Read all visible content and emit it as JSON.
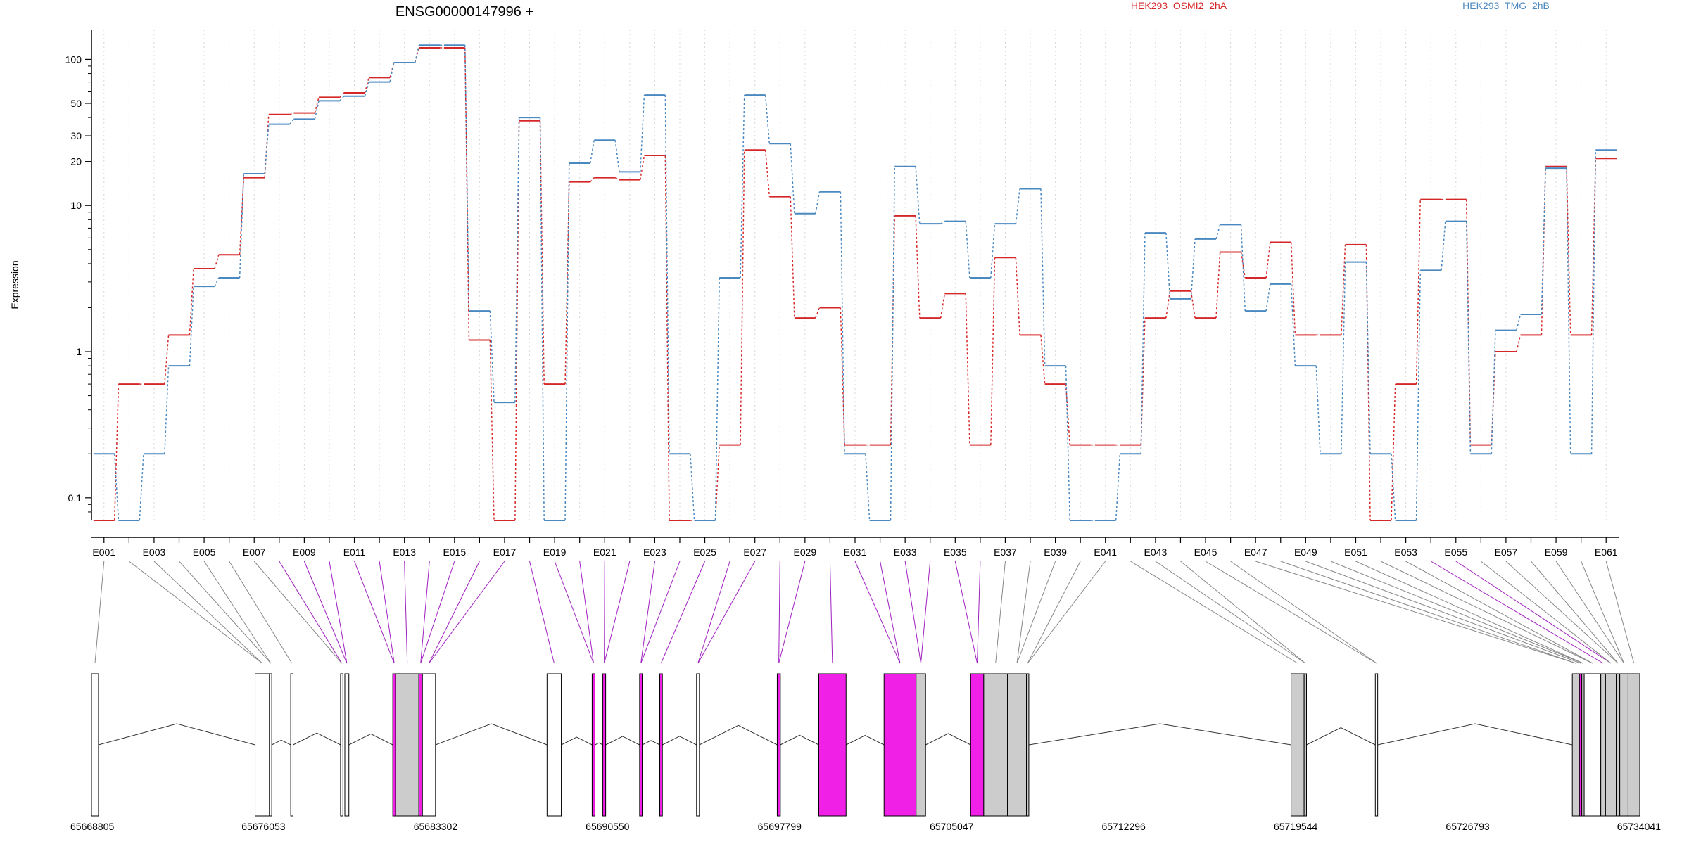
{
  "title": "ENSG00000147996 +",
  "ylabel": "Expression",
  "colors": {
    "series_a": "#d62728",
    "series_b": "#4a88c0",
    "highlight": "#f020e6",
    "shaded": "#cccccc",
    "line": "#000000",
    "grid": "#d8d8d8"
  },
  "chart_data": {
    "type": "line",
    "scale": "log",
    "ylim": [
      0.07,
      160
    ],
    "yticks": [
      0.1,
      1,
      10,
      20,
      30,
      50,
      100
    ],
    "ytick_labels": [
      "0.1",
      "1",
      "10",
      "20",
      "30",
      "50",
      "100"
    ],
    "categories": [
      "E001",
      "E002",
      "E003",
      "E004",
      "E005",
      "E006",
      "E007",
      "E008",
      "E009",
      "E010",
      "E011",
      "E012",
      "E013",
      "E014",
      "E015",
      "E016",
      "E017",
      "E018",
      "E019",
      "E020",
      "E021",
      "E022",
      "E023",
      "E024",
      "E025",
      "E026",
      "E027",
      "E028",
      "E029",
      "E030",
      "E031",
      "E032",
      "E033",
      "E034",
      "E035",
      "E036",
      "E037",
      "E038",
      "E039",
      "E040",
      "E041",
      "E042",
      "E043",
      "E044",
      "E045",
      "E046",
      "E047",
      "E048",
      "E049",
      "E050",
      "E051",
      "E052",
      "E053",
      "E054",
      "E055",
      "E056",
      "E057",
      "E058",
      "E059",
      "E060",
      "E061"
    ],
    "series": [
      {
        "name": "HEK293_OSMI2_2hA",
        "color": "#d62728",
        "values": [
          0.07,
          0.6,
          0.6,
          1.3,
          3.7,
          4.6,
          15.5,
          42,
          43,
          55,
          59,
          75,
          95,
          120,
          120,
          1.2,
          0.07,
          38,
          0.6,
          14.5,
          15.5,
          15,
          22,
          0.07,
          0.07,
          0.23,
          24,
          11.5,
          1.7,
          2.0,
          0.23,
          0.23,
          8.5,
          1.7,
          2.5,
          0.23,
          4.4,
          1.3,
          0.6,
          0.23,
          0.23,
          0.23,
          1.7,
          2.6,
          1.7,
          4.8,
          3.2,
          5.6,
          1.3,
          1.3,
          5.4,
          0.07,
          0.6,
          11,
          11,
          0.23,
          1.0,
          1.3,
          18.5,
          1.3,
          21
        ]
      },
      {
        "name": "HEK293_TMG_2hB",
        "color": "#4a88c0",
        "values": [
          0.2,
          0.07,
          0.2,
          0.8,
          2.8,
          3.2,
          16.5,
          36,
          39,
          52,
          56,
          70,
          95,
          125,
          125,
          1.9,
          0.45,
          40,
          0.07,
          19.5,
          28,
          17,
          57,
          0.2,
          0.07,
          3.2,
          57,
          26.5,
          8.8,
          12.4,
          0.2,
          0.07,
          18.5,
          7.5,
          7.8,
          3.2,
          7.5,
          13,
          0.8,
          0.07,
          0.07,
          0.2,
          6.5,
          2.3,
          5.9,
          7.4,
          1.9,
          2.9,
          0.8,
          0.2,
          4.1,
          0.2,
          0.07,
          3.6,
          7.8,
          0.2,
          1.4,
          1.8,
          18,
          0.2,
          24
        ]
      }
    ],
    "legend": {
      "placement": "top-right",
      "entries": [
        "HEK293_OSMI2_2hA",
        "HEK293_TMG_2hB"
      ]
    },
    "xtick_labels": [
      "E001",
      "E003",
      "E005",
      "E007",
      "E009",
      "E011",
      "E013",
      "E015",
      "E017",
      "E019",
      "E021",
      "E023",
      "E025",
      "E027",
      "E029",
      "E031",
      "E033",
      "E035",
      "E037",
      "E039",
      "E041",
      "E043",
      "E045",
      "E047",
      "E049",
      "E051",
      "E053",
      "E055",
      "E057",
      "E059",
      "E061"
    ],
    "highlighted_exons": [
      "E008",
      "E009",
      "E010",
      "E011",
      "E012",
      "E013",
      "E014",
      "E015",
      "E016",
      "E017",
      "E018",
      "E019",
      "E020",
      "E021",
      "E022",
      "E023",
      "E024",
      "E025",
      "E026",
      "E027",
      "E028",
      "E029",
      "E030",
      "E031",
      "E032",
      "E033",
      "E034",
      "E035",
      "E036",
      "E054",
      "E055"
    ],
    "genomic_range": [
      65668805,
      65734041
    ],
    "genomic_ticks": [
      65668805,
      65676053,
      65683302,
      65690550,
      65697799,
      65705047,
      65712296,
      65719544,
      65726793,
      65734041
    ],
    "gene_model": [
      {
        "start": 65668805,
        "end": 65669100,
        "fill": "white"
      },
      {
        "start": 65675700,
        "end": 65676300,
        "fill": "white"
      },
      {
        "start": 65676320,
        "end": 65676400,
        "fill": "white"
      },
      {
        "start": 65677200,
        "end": 65677300,
        "fill": "white"
      },
      {
        "start": 65679300,
        "end": 65679400,
        "fill": "white"
      },
      {
        "start": 65679480,
        "end": 65679650,
        "fill": "white"
      },
      {
        "start": 65681500,
        "end": 65681620,
        "fill": "highlight"
      },
      {
        "start": 65681620,
        "end": 65682600,
        "fill": "shaded"
      },
      {
        "start": 65682600,
        "end": 65682750,
        "fill": "highlight"
      },
      {
        "start": 65682750,
        "end": 65683300,
        "fill": "white"
      },
      {
        "start": 65688000,
        "end": 65688600,
        "fill": "white"
      },
      {
        "start": 65689900,
        "end": 65690020,
        "fill": "highlight"
      },
      {
        "start": 65690350,
        "end": 65690470,
        "fill": "highlight"
      },
      {
        "start": 65691900,
        "end": 65692010,
        "fill": "highlight"
      },
      {
        "start": 65692750,
        "end": 65692860,
        "fill": "highlight"
      },
      {
        "start": 65694300,
        "end": 65694420,
        "fill": "white"
      },
      {
        "start": 65697700,
        "end": 65697830,
        "fill": "highlight"
      },
      {
        "start": 65699450,
        "end": 65700600,
        "fill": "highlight"
      },
      {
        "start": 65702200,
        "end": 65703550,
        "fill": "highlight"
      },
      {
        "start": 65703550,
        "end": 65703950,
        "fill": "shaded"
      },
      {
        "start": 65705850,
        "end": 65706400,
        "fill": "highlight"
      },
      {
        "start": 65706400,
        "end": 65707400,
        "fill": "shaded"
      },
      {
        "start": 65707400,
        "end": 65708200,
        "fill": "shaded"
      },
      {
        "start": 65708200,
        "end": 65708300,
        "fill": "shaded"
      },
      {
        "start": 65719350,
        "end": 65719900,
        "fill": "shaded"
      },
      {
        "start": 65719900,
        "end": 65720000,
        "fill": "shaded"
      },
      {
        "start": 65722900,
        "end": 65723000,
        "fill": "white"
      },
      {
        "start": 65731200,
        "end": 65731500,
        "fill": "shaded"
      },
      {
        "start": 65731500,
        "end": 65731600,
        "fill": "highlight"
      },
      {
        "start": 65731600,
        "end": 65731700,
        "fill": "shaded"
      },
      {
        "start": 65731700,
        "end": 65732400,
        "fill": "white"
      },
      {
        "start": 65732400,
        "end": 65732600,
        "fill": "shaded"
      },
      {
        "start": 65732600,
        "end": 65733050,
        "fill": "shaded"
      },
      {
        "start": 65733050,
        "end": 65733200,
        "fill": "shaded"
      },
      {
        "start": 65733200,
        "end": 65733550,
        "fill": "shaded"
      },
      {
        "start": 65733550,
        "end": 65734041,
        "fill": "shaded"
      }
    ]
  }
}
